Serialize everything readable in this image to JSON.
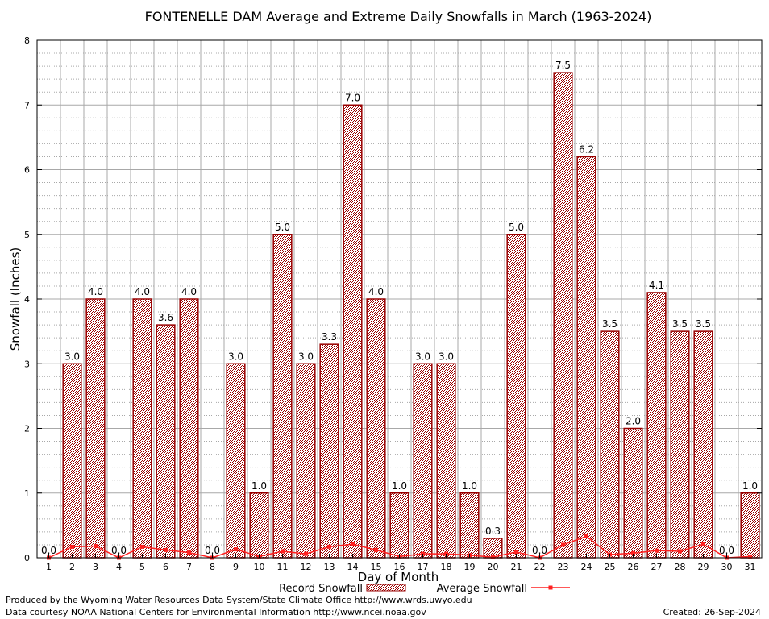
{
  "chart_data": {
    "type": "bar",
    "title": "FONTENELLE DAM Average and Extreme Daily Snowfalls in March (1963-2024)",
    "xlabel": "Day of Month",
    "ylabel": "Snowfall (Inches)",
    "ylim": [
      0,
      8
    ],
    "yticks": [
      "0",
      "1",
      "2",
      "3",
      "4",
      "5",
      "6",
      "7",
      "8"
    ],
    "categories": [
      "1",
      "2",
      "3",
      "4",
      "5",
      "6",
      "7",
      "8",
      "9",
      "10",
      "11",
      "12",
      "13",
      "14",
      "15",
      "16",
      "17",
      "18",
      "19",
      "20",
      "21",
      "22",
      "23",
      "24",
      "25",
      "26",
      "27",
      "28",
      "29",
      "30",
      "31"
    ],
    "series": [
      {
        "name": "Record Snowfall",
        "kind": "bar",
        "values": [
          0.0,
          3.0,
          4.0,
          0.0,
          4.0,
          3.6,
          4.0,
          0.0,
          3.0,
          1.0,
          5.0,
          3.0,
          3.3,
          7.0,
          4.0,
          1.0,
          3.0,
          3.0,
          1.0,
          0.3,
          5.0,
          0.0,
          7.5,
          6.2,
          3.5,
          2.0,
          4.1,
          3.5,
          3.5,
          0.0,
          1.0
        ],
        "labels": [
          "0.0",
          "3.0",
          "4.0",
          "0.0",
          "4.0",
          "3.6",
          "4.0",
          "0.0",
          "3.0",
          "1.0",
          "5.0",
          "3.0",
          "3.3",
          "7.0",
          "4.0",
          "1.0",
          "3.0",
          "3.0",
          "1.0",
          "0.3",
          "5.0",
          "0.0",
          "7.5",
          "6.2",
          "3.5",
          "2.0",
          "4.1",
          "3.5",
          "3.5",
          "0.0",
          "1.0"
        ]
      },
      {
        "name": "Average Snowfall",
        "kind": "line",
        "values": [
          0.0,
          0.17,
          0.18,
          0.0,
          0.17,
          0.12,
          0.08,
          0.0,
          0.13,
          0.02,
          0.1,
          0.06,
          0.17,
          0.21,
          0.12,
          0.02,
          0.06,
          0.06,
          0.04,
          0.01,
          0.09,
          0.0,
          0.2,
          0.33,
          0.05,
          0.07,
          0.11,
          0.1,
          0.21,
          0.0,
          0.02
        ]
      }
    ],
    "legend": {
      "position": "bottom",
      "entries": [
        "Record Snowfall",
        "Average Snowfall"
      ]
    },
    "grid": true,
    "colors": {
      "bar_edge": "#990000",
      "bar_fill": "#c98a8a",
      "line": "#ff2020",
      "grid": "#a8a8a8"
    }
  },
  "credits": {
    "produced_by": "Produced by the Wyoming Water Resources Data System/State Climate Office http://www.wrds.uwyo.edu",
    "data_courtesy": "Data courtesy NOAA National Centers for Environmental Information http://www.ncei.noaa.gov",
    "created": "Created:  26-Sep-2024"
  }
}
